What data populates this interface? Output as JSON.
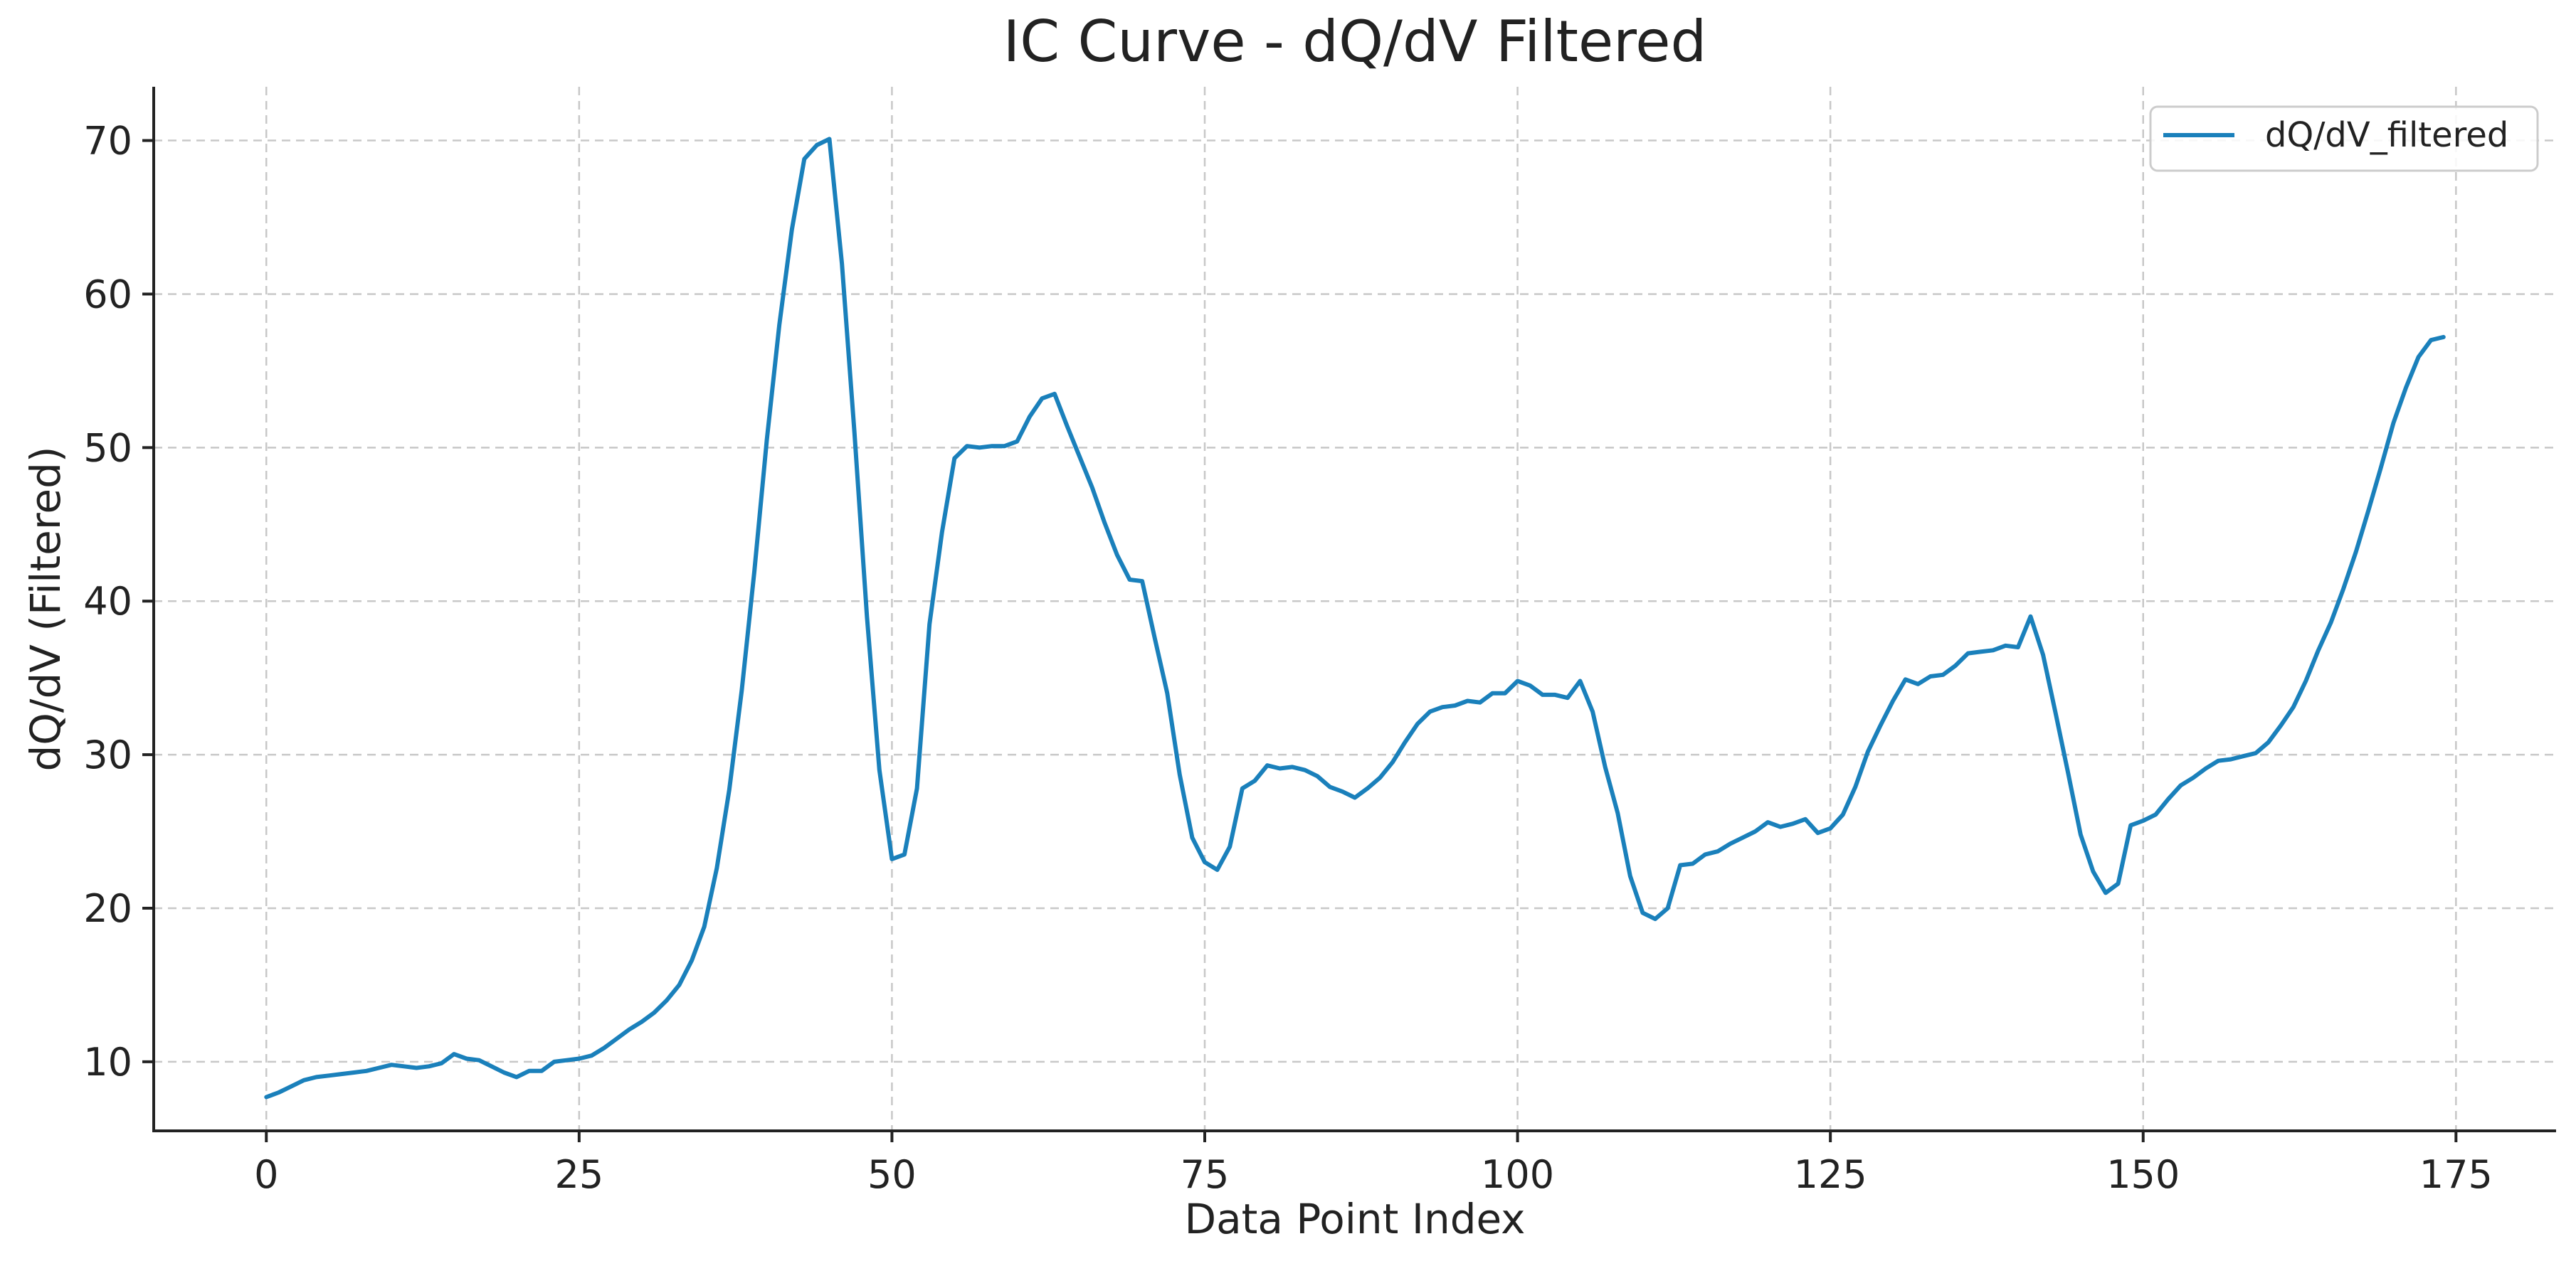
{
  "colors": {
    "series": "#1a80bb",
    "grid": "#c8c8c8",
    "axis": "#222222"
  },
  "chart_data": {
    "type": "line",
    "title": "IC Curve - dQ/dV Filtered",
    "xlabel": "Data Point Index",
    "ylabel": "dQ/dV (Filtered)",
    "xlim": [
      -9,
      183
    ],
    "ylim": [
      5.5,
      73.5
    ],
    "xticks": [
      0,
      25,
      50,
      75,
      100,
      125,
      150,
      175
    ],
    "yticks": [
      10,
      20,
      30,
      40,
      50,
      60,
      70
    ],
    "grid": true,
    "legend_position": "top-right",
    "series": [
      {
        "name": "dQ/dV_filtered",
        "color": "#1a80bb",
        "x": [
          0,
          1,
          2,
          3,
          4,
          5,
          6,
          7,
          8,
          9,
          10,
          11,
          12,
          13,
          14,
          15,
          16,
          17,
          18,
          19,
          20,
          21,
          22,
          23,
          24,
          25,
          26,
          27,
          28,
          29,
          30,
          31,
          32,
          33,
          34,
          35,
          36,
          37,
          38,
          39,
          40,
          41,
          42,
          43,
          44,
          45,
          46,
          47,
          48,
          49,
          50,
          51,
          52,
          53,
          54,
          55,
          56,
          57,
          58,
          59,
          60,
          61,
          62,
          63,
          64,
          65,
          66,
          67,
          68,
          69,
          70,
          71,
          72,
          73,
          74,
          75,
          76,
          77,
          78,
          79,
          80,
          81,
          82,
          83,
          84,
          85,
          86,
          87,
          88,
          89,
          90,
          91,
          92,
          93,
          94,
          95,
          96,
          97,
          98,
          99,
          100,
          101,
          102,
          103,
          104,
          105,
          106,
          107,
          108,
          109,
          110,
          111,
          112,
          113,
          114,
          115,
          116,
          117,
          118,
          119,
          120,
          121,
          122,
          123,
          124,
          125,
          126,
          127,
          128,
          129,
          130,
          131,
          132,
          133,
          134,
          135,
          136,
          137,
          138,
          139,
          140,
          141,
          142,
          143,
          144,
          145,
          146,
          147,
          148,
          149,
          150,
          151,
          152,
          153,
          154,
          155,
          156,
          157,
          158,
          159,
          160,
          161,
          162,
          163,
          164,
          165,
          166,
          167,
          168,
          169,
          170,
          171,
          172,
          173,
          174
        ],
        "y": [
          7.7,
          8.0,
          8.4,
          8.8,
          9.0,
          9.1,
          9.2,
          9.3,
          9.4,
          9.6,
          9.8,
          9.7,
          9.6,
          9.7,
          9.9,
          10.5,
          10.2,
          10.1,
          9.7,
          9.3,
          9.0,
          9.4,
          9.4,
          10.0,
          10.1,
          10.2,
          10.4,
          10.9,
          11.5,
          12.1,
          12.6,
          13.2,
          14.0,
          15.0,
          16.6,
          18.8,
          22.6,
          27.7,
          34.2,
          41.9,
          50.5,
          58.0,
          64.2,
          68.8,
          69.7,
          70.1,
          62.0,
          51.0,
          39.0,
          29.0,
          23.2,
          23.5,
          27.8,
          38.5,
          44.5,
          49.3,
          50.1,
          50.0,
          50.1,
          50.1,
          50.4,
          52.0,
          53.2,
          53.5,
          51.4,
          49.4,
          47.4,
          45.1,
          43.0,
          41.4,
          41.3,
          37.6,
          34.0,
          28.7,
          24.6,
          23.0,
          22.5,
          24.0,
          27.8,
          28.3,
          29.3,
          29.1,
          29.2,
          29.0,
          28.6,
          27.9,
          27.6,
          27.2,
          27.8,
          28.5,
          29.5,
          30.8,
          32.0,
          32.8,
          33.1,
          33.2,
          33.5,
          33.4,
          34.0,
          34.0,
          34.8,
          34.5,
          33.9,
          33.9,
          33.7,
          34.8,
          32.8,
          29.2,
          26.2,
          22.1,
          19.7,
          19.3,
          20.0,
          22.8,
          22.9,
          23.5,
          23.7,
          24.2,
          24.6,
          25.0,
          25.6,
          25.3,
          25.5,
          25.8,
          24.9,
          25.2,
          26.1,
          27.9,
          30.2,
          31.9,
          33.5,
          34.9,
          34.6,
          35.1,
          35.2,
          35.8,
          36.6,
          36.7,
          36.8,
          37.1,
          37.0,
          39.0,
          36.5,
          32.7,
          28.8,
          24.8,
          22.4,
          21.0,
          21.6,
          25.4,
          25.7,
          26.1,
          27.1,
          28.0,
          28.5,
          29.1,
          29.6,
          29.7,
          29.9,
          30.1,
          30.8,
          31.9,
          33.1,
          34.8,
          36.8,
          38.6,
          40.8,
          43.2,
          45.9,
          48.7,
          51.6,
          53.9,
          55.9,
          57.0,
          57.2
        ]
      }
    ]
  }
}
